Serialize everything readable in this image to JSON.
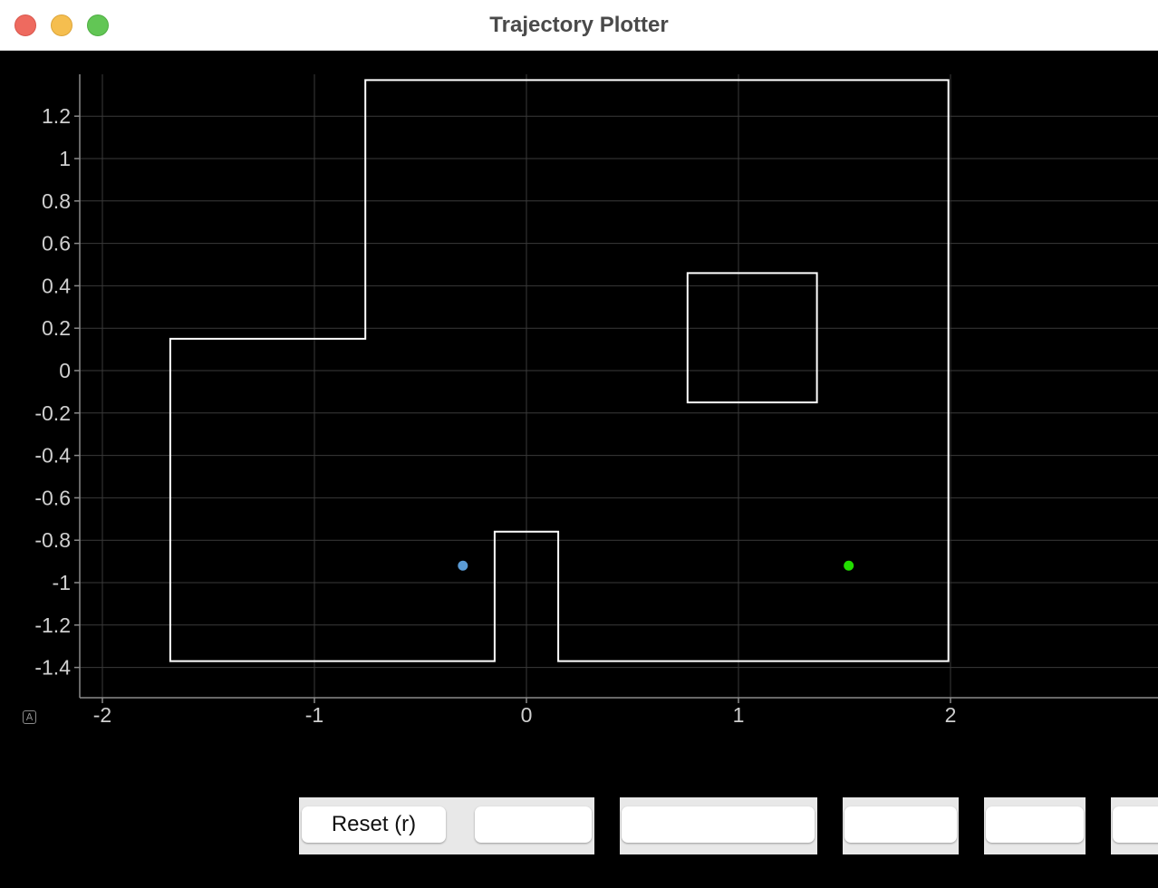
{
  "window": {
    "title": "Trajectory Plotter"
  },
  "colors": {
    "background": "#000000",
    "grid": "#3a3a3a",
    "axis": "#8a8a8a",
    "tick_label": "#cfcfcf",
    "wall": "#ffffff",
    "start_marker": "#5b9bd5",
    "goal_marker": "#22dd00"
  },
  "plot": {
    "autoscale_icon": "A"
  },
  "chart_data": {
    "type": "scatter",
    "xlim": [
      -2.1,
      2.95
    ],
    "ylim": [
      -1.54,
      1.39
    ],
    "xticks": [
      -2,
      -1,
      0,
      1,
      2
    ],
    "yticks": [
      1.2,
      1,
      0.8,
      0.6,
      0.4,
      0.2,
      0,
      -0.2,
      -0.4,
      -0.6,
      -0.8,
      -1,
      -1.2,
      -1.4
    ],
    "grid": true,
    "polylines": [
      {
        "name": "boundary",
        "closed": true,
        "points": [
          [
            -1.68,
            0.15
          ],
          [
            -0.76,
            0.15
          ],
          [
            -0.76,
            1.37
          ],
          [
            1.99,
            1.37
          ],
          [
            1.99,
            -1.37
          ],
          [
            0.15,
            -1.37
          ],
          [
            0.15,
            -0.76
          ],
          [
            -0.15,
            -0.76
          ],
          [
            -0.15,
            -1.37
          ],
          [
            -1.68,
            -1.37
          ]
        ]
      },
      {
        "name": "obstacle",
        "closed": true,
        "points": [
          [
            0.76,
            0.46
          ],
          [
            1.37,
            0.46
          ],
          [
            1.37,
            -0.15
          ],
          [
            0.76,
            -0.15
          ]
        ]
      }
    ],
    "points": [
      {
        "name": "start",
        "x": -0.3,
        "y": -0.92
      },
      {
        "name": "goal",
        "x": 1.52,
        "y": -0.92
      }
    ]
  },
  "buttons": [
    {
      "label": "Reset (r)"
    },
    {
      "label": ""
    },
    {
      "label": ""
    },
    {
      "label": ""
    },
    {
      "label": ""
    },
    {
      "label": ""
    }
  ]
}
